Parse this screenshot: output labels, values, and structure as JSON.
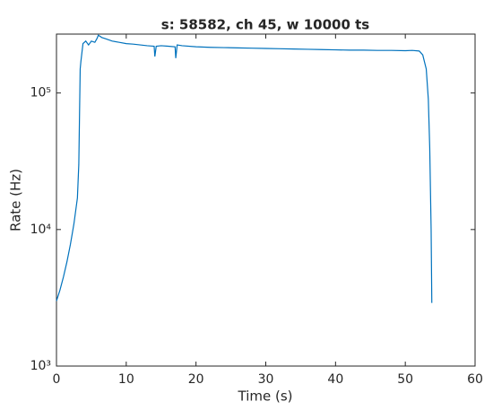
{
  "chart_data": {
    "type": "line",
    "title": "s: 58582, ch 45, w 10000 ts",
    "x_label": "Time (s)",
    "y_label": "Rate (Hz)",
    "y_log": true,
    "xlim": [
      0,
      60
    ],
    "xticks": [
      0,
      10,
      20,
      30,
      40,
      50,
      60
    ],
    "ylim": [
      1000,
      270000
    ],
    "yticks": [
      {
        "value": 1000,
        "label": "10³"
      },
      {
        "value": 10000,
        "label": "10⁴"
      },
      {
        "value": 100000,
        "label": "10⁵"
      }
    ],
    "x": [
      0,
      0.5,
      1,
      1.5,
      2,
      2.5,
      3,
      3.2,
      3.4,
      3.5,
      3.8,
      4.2,
      4.6,
      5,
      5.5,
      5.8,
      6,
      6.5,
      7,
      8,
      9,
      10,
      11,
      12,
      13,
      14,
      14.1,
      14.3,
      15,
      16,
      17,
      17.1,
      17.3,
      18,
      20,
      22,
      24,
      26,
      28,
      30,
      32,
      34,
      36,
      38,
      40,
      42,
      44,
      46,
      48,
      50,
      51,
      52,
      52.5,
      53,
      53.3,
      53.5,
      53.7,
      53.8
    ],
    "series": [
      {
        "color": "#0072bd",
        "values": [
          3000,
          3600,
          4500,
          5800,
          7800,
          11000,
          17000,
          30000,
          150000,
          170000,
          230000,
          240000,
          225000,
          240000,
          235000,
          250000,
          265000,
          255000,
          250000,
          240000,
          235000,
          230000,
          228000,
          225000,
          222000,
          220000,
          185000,
          220000,
          222000,
          220000,
          218000,
          180000,
          225000,
          222000,
          218000,
          216000,
          215000,
          214000,
          213000,
          212000,
          211000,
          210000,
          209000,
          208000,
          207000,
          206000,
          206000,
          205000,
          205000,
          204000,
          205000,
          203000,
          190000,
          150000,
          90000,
          40000,
          10000,
          2900
        ]
      }
    ]
  }
}
